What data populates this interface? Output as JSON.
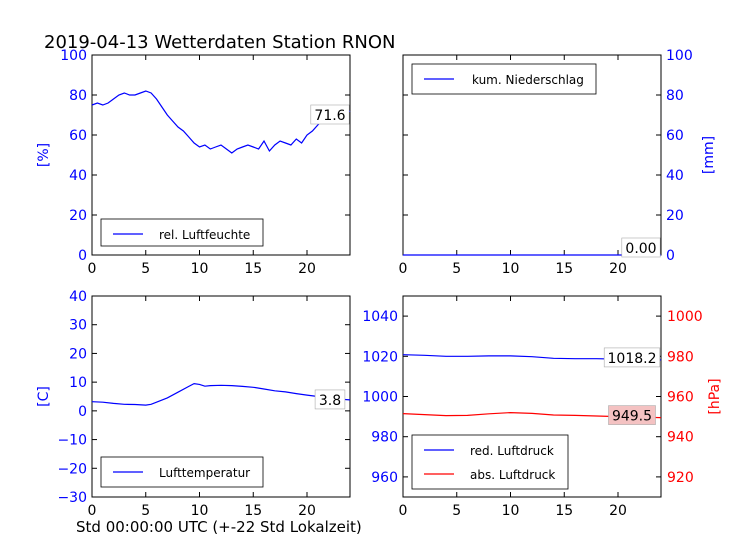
{
  "title": "2019-04-13 Wetterdaten Station RNON",
  "xlabel": "Std 00:00:00 UTC (+-22 Std Lokalzeit)",
  "colors": {
    "blue": "#0000ff",
    "red": "#ff0000",
    "black": "#000000",
    "value_box_red": "#f4c2c2"
  },
  "chart_data": [
    {
      "type": "line",
      "panel": "top-left",
      "ylabel": "[%]",
      "xlim": [
        0,
        24
      ],
      "ylim": [
        0,
        100
      ],
      "xticks": [
        0,
        5,
        10,
        15,
        20
      ],
      "yticks": [
        0,
        20,
        40,
        60,
        80,
        100
      ],
      "legend": {
        "placement": "lower-left",
        "entries": [
          "rel. Luftfeuchte"
        ]
      },
      "value_label": "71.6",
      "series": [
        {
          "name": "rel. Luftfeuchte",
          "color": "#0000ff",
          "x": [
            0,
            0.5,
            1,
            1.5,
            2,
            2.5,
            3,
            3.5,
            4,
            4.5,
            5,
            5.5,
            6,
            6.5,
            7,
            7.5,
            8,
            8.5,
            9,
            9.5,
            10,
            10.5,
            11,
            11.5,
            12,
            12.5,
            13,
            13.5,
            14,
            14.5,
            15,
            15.5,
            16,
            16.5,
            17,
            17.5,
            18,
            18.5,
            19,
            19.5,
            20,
            20.5,
            21,
            21.5,
            22,
            22.5,
            23,
            23.5,
            24
          ],
          "y": [
            75,
            76,
            75,
            76,
            78,
            80,
            81,
            80,
            80,
            81,
            82,
            81,
            78,
            74,
            70,
            67,
            64,
            62,
            59,
            56,
            54,
            55,
            53,
            54,
            55,
            53,
            51,
            53,
            54,
            55,
            54,
            53,
            57,
            52,
            55,
            57,
            56,
            55,
            58,
            56,
            60,
            62,
            65,
            68,
            70,
            72,
            71,
            70,
            72
          ]
        }
      ]
    },
    {
      "type": "line",
      "panel": "top-right",
      "ylabel": "[mm]",
      "xlim": [
        0,
        24
      ],
      "ylim": [
        0,
        100
      ],
      "xticks": [
        0,
        5,
        10,
        15,
        20
      ],
      "yticks": [
        0,
        20,
        40,
        60,
        80,
        100
      ],
      "legend": {
        "placement": "upper-left",
        "entries": [
          "kum. Niederschlag"
        ]
      },
      "value_label": "0.00",
      "series": [
        {
          "name": "kum. Niederschlag",
          "color": "#0000ff",
          "x": [
            0,
            24
          ],
          "y": [
            0,
            0
          ]
        }
      ]
    },
    {
      "type": "line",
      "panel": "bottom-left",
      "ylabel": "[C]",
      "xlim": [
        0,
        24
      ],
      "ylim": [
        -30,
        40
      ],
      "xticks": [
        0,
        5,
        10,
        15,
        20
      ],
      "yticks": [
        -30,
        -20,
        -10,
        0,
        10,
        20,
        30,
        40
      ],
      "legend": {
        "placement": "lower-left",
        "entries": [
          "Lufttemperatur"
        ]
      },
      "value_label": "3.8",
      "series": [
        {
          "name": "Lufttemperatur",
          "color": "#0000ff",
          "x": [
            0,
            1,
            2,
            3,
            4,
            5,
            5.5,
            6,
            7,
            8,
            9,
            9.5,
            10,
            10.5,
            11,
            12,
            13,
            14,
            15,
            16,
            17,
            18,
            19,
            20,
            21,
            22,
            23,
            24
          ],
          "y": [
            3.2,
            3,
            2.6,
            2.3,
            2.2,
            2.0,
            2.3,
            3.0,
            4.5,
            6.5,
            8.5,
            9.5,
            9.2,
            8.6,
            8.8,
            8.9,
            8.8,
            8.5,
            8.2,
            7.6,
            7.0,
            6.6,
            6.0,
            5.5,
            5.0,
            4.5,
            4.1,
            3.8
          ]
        }
      ]
    },
    {
      "type": "line",
      "panel": "bottom-right",
      "ylabel": "",
      "ylabel_right": "[hPa]",
      "xlim": [
        0,
        24
      ],
      "ylim": [
        950,
        1050
      ],
      "ylim_right": [
        910,
        1010
      ],
      "xticks": [
        0,
        5,
        10,
        15,
        20
      ],
      "yticks": [
        960,
        980,
        1000,
        1020,
        1040
      ],
      "yticks_right": [
        920,
        940,
        960,
        980,
        1000
      ],
      "legend": {
        "placement": "lower-left",
        "entries": [
          "red. Luftdruck",
          "abs. Luftdruck"
        ]
      },
      "value_labels": [
        "1018.2",
        "949.5"
      ],
      "series": [
        {
          "name": "red. Luftdruck",
          "color": "#0000ff",
          "axis": "left",
          "x": [
            0,
            2,
            4,
            6,
            8,
            10,
            12,
            14,
            16,
            18,
            20,
            22,
            24
          ],
          "y": [
            1020.8,
            1020.5,
            1020.0,
            1020.0,
            1020.2,
            1020.2,
            1019.8,
            1019.0,
            1018.8,
            1018.8,
            1018.6,
            1018.4,
            1018.2
          ]
        },
        {
          "name": "abs. Luftdruck",
          "color": "#ff0000",
          "axis": "right",
          "x": [
            0,
            2,
            4,
            6,
            8,
            10,
            12,
            14,
            16,
            18,
            20,
            22,
            24
          ],
          "y": [
            951.5,
            951.0,
            950.5,
            950.6,
            951.4,
            952.0,
            951.6,
            950.8,
            950.6,
            950.3,
            950.0,
            949.7,
            949.5
          ]
        }
      ]
    }
  ]
}
